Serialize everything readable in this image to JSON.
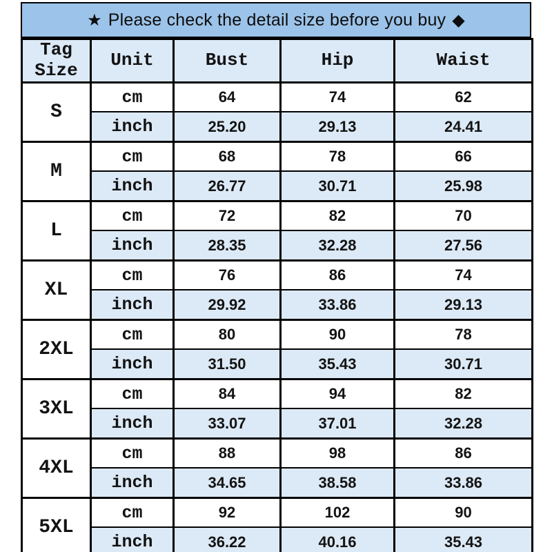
{
  "banner": {
    "star_icon": "★",
    "text": "Please check the detail size before you buy",
    "diamond_icon": "◆"
  },
  "colors": {
    "banner_bg": "#9cc3e9",
    "alt_row_bg": "#dce9f6",
    "border": "#000000",
    "text": "#131313",
    "page_bg": "#ffffff"
  },
  "chart_data": {
    "type": "table",
    "title": "★ Please check the detail size before you buy ◆",
    "columns": [
      "Tag Size",
      "Unit",
      "Bust",
      "Hip",
      "Waist"
    ],
    "measure_columns": [
      "Bust",
      "Hip",
      "Waist"
    ],
    "units": [
      "cm",
      "inch"
    ],
    "groups": [
      {
        "size": "S",
        "cm": [
          "64",
          "74",
          "62"
        ],
        "inch": [
          "25.20",
          "29.13",
          "24.41"
        ]
      },
      {
        "size": "M",
        "cm": [
          "68",
          "78",
          "66"
        ],
        "inch": [
          "26.77",
          "30.71",
          "25.98"
        ]
      },
      {
        "size": "L",
        "cm": [
          "72",
          "82",
          "70"
        ],
        "inch": [
          "28.35",
          "32.28",
          "27.56"
        ]
      },
      {
        "size": "XL",
        "cm": [
          "76",
          "86",
          "74"
        ],
        "inch": [
          "29.92",
          "33.86",
          "29.13"
        ]
      },
      {
        "size": "2XL",
        "cm": [
          "80",
          "90",
          "78"
        ],
        "inch": [
          "31.50",
          "35.43",
          "30.71"
        ]
      },
      {
        "size": "3XL",
        "cm": [
          "84",
          "94",
          "82"
        ],
        "inch": [
          "33.07",
          "37.01",
          "32.28"
        ]
      },
      {
        "size": "4XL",
        "cm": [
          "88",
          "98",
          "86"
        ],
        "inch": [
          "34.65",
          "38.58",
          "33.86"
        ]
      },
      {
        "size": "5XL",
        "cm": [
          "92",
          "102",
          "90"
        ],
        "inch": [
          "36.22",
          "40.16",
          "35.43"
        ]
      }
    ]
  }
}
